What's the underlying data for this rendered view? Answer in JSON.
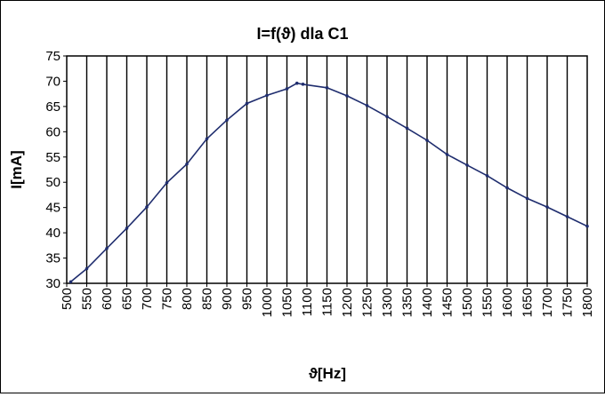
{
  "chart_data": {
    "type": "line",
    "title": "I=f(ϑ) dla C1",
    "xlabel": "ϑ[Hz]",
    "ylabel": "I[mA]",
    "xlim": [
      500,
      1800
    ],
    "ylim": [
      30,
      75
    ],
    "x_ticks": [
      500,
      550,
      600,
      650,
      700,
      750,
      800,
      850,
      900,
      950,
      1000,
      1050,
      1100,
      1150,
      1200,
      1250,
      1300,
      1350,
      1400,
      1450,
      1500,
      1550,
      1600,
      1650,
      1700,
      1750,
      1800
    ],
    "y_ticks": [
      30,
      35,
      40,
      45,
      50,
      55,
      60,
      65,
      70,
      75
    ],
    "grid": "vertical",
    "legend": "none",
    "line_color": "#1f2d6e",
    "series": [
      {
        "x": [
          510,
          550,
          600,
          650,
          700,
          750,
          800,
          850,
          900,
          950,
          1000,
          1050,
          1075,
          1090,
          1150,
          1200,
          1250,
          1300,
          1350,
          1400,
          1450,
          1500,
          1550,
          1600,
          1650,
          1700,
          1750,
          1800
        ],
        "y": [
          30.3,
          32.9,
          36.9,
          40.9,
          45.1,
          49.9,
          53.6,
          58.6,
          62.3,
          65.6,
          67.2,
          68.5,
          69.6,
          69.4,
          68.7,
          67.1,
          65.2,
          63.0,
          60.7,
          58.3,
          55.5,
          53.4,
          51.3,
          48.9,
          46.8,
          45.1,
          43.2,
          41.3
        ]
      }
    ]
  }
}
